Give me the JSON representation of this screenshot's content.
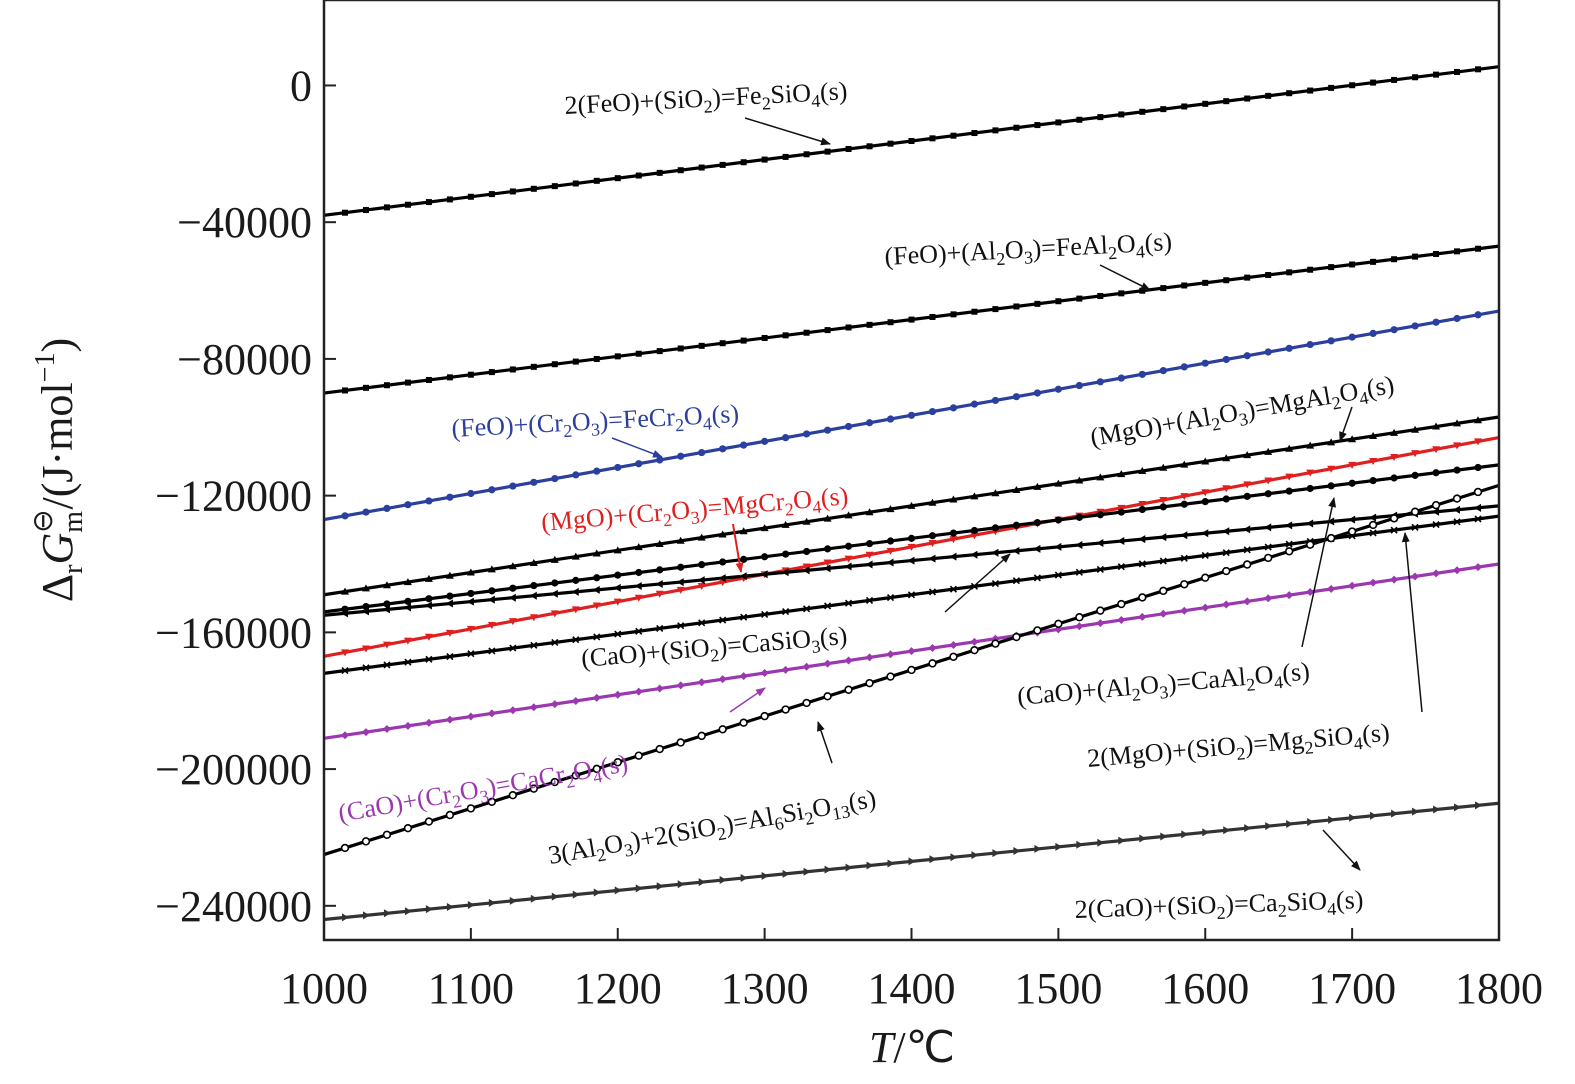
{
  "chart_data": {
    "type": "line",
    "xlabel": "T/℃",
    "ylabel": "ΔrGm⊖/(J·mol⁻¹)",
    "xlim": [
      1000,
      1800
    ],
    "ylim": [
      -250000,
      25000
    ],
    "xticks": [
      "1000",
      "1100",
      "1200",
      "1300",
      "1400",
      "1500",
      "1600",
      "1700",
      "1800"
    ],
    "yticks": [
      "0",
      "−40000",
      "−80000",
      "−120000",
      "−160000",
      "−200000",
      "−240000"
    ],
    "ytick_values": [
      0,
      -40000,
      -80000,
      -120000,
      -160000,
      -200000,
      -240000
    ],
    "grid": false,
    "series": [
      {
        "name": "2(FeO)+(SiO2)=Fe2SiO4(s)",
        "color": "#000000",
        "marker": "square",
        "x": [
          1000,
          1800
        ],
        "y": [
          -38000,
          5500
        ]
      },
      {
        "name": "(FeO)+(Al2O3)=FeAl2O4(s)",
        "color": "#000000",
        "marker": "square",
        "x": [
          1000,
          1800
        ],
        "y": [
          -90000,
          -47000
        ]
      },
      {
        "name": "(FeO)+(Cr2O3)=FeCr2O4(s)",
        "color": "#2a3f9e",
        "marker": "circle",
        "x": [
          1000,
          1800
        ],
        "y": [
          -127000,
          -66000
        ]
      },
      {
        "name": "(MgO)+(Al2O3)=MgAl2O4(s)",
        "color": "#000000",
        "marker": "triangle-up",
        "x": [
          1000,
          1800
        ],
        "y": [
          -149000,
          -97000
        ]
      },
      {
        "name": "(MgO)+(Cr2O3)=MgCr2O4(s)",
        "color": "#e02020",
        "marker": "triangle-down",
        "x": [
          1000,
          1800
        ],
        "y": [
          -167000,
          -103000
        ]
      },
      {
        "name": "(CaO)+(Al2O3)=CaAl2O4(s)",
        "color": "#000000",
        "marker": "hexagon",
        "x": [
          1000,
          1800
        ],
        "y": [
          -154000,
          -111000
        ]
      },
      {
        "name": "2(MgO)+(SiO2)=Mg2SiO4(s)",
        "color": "#000000",
        "marker": "triangle-left",
        "x": [
          1000,
          1800
        ],
        "y": [
          -155000,
          -123000
        ]
      },
      {
        "name": "(CaO)+(SiO2)=CaSiO3(s)",
        "color": "#000000",
        "marker": "cross",
        "x": [
          1000,
          1800
        ],
        "y": [
          -172000,
          -126000
        ]
      },
      {
        "name": "(CaO)+(Cr2O3)=CaCr2O4(s)",
        "color": "#9b38b0",
        "marker": "diamond",
        "x": [
          1000,
          1800
        ],
        "y": [
          -191000,
          -140000
        ]
      },
      {
        "name": "3(Al2O3)+2(SiO2)=Al6Si2O13(s)",
        "color": "#000000",
        "marker": "open-circle",
        "x": [
          1000,
          1800
        ],
        "y": [
          -225000,
          -117000
        ]
      },
      {
        "name": "2(CaO)+(SiO2)=Ca2SiO4(s)",
        "color": "#333333",
        "marker": "triangle-right",
        "x": [
          1000,
          1800
        ],
        "y": [
          -244000,
          -210000
        ]
      }
    ],
    "annotations": [
      {
        "text": "2(FeO)+(SiO2)=Fe2SiO4(s)",
        "color": "#000000",
        "arrow": true
      },
      {
        "text": "(FeO)+(Al2O3)=FeAl2O4(s)",
        "color": "#000000",
        "arrow": true
      },
      {
        "text": "(FeO)+(Cr2O3)=FeCr2O4(s)",
        "color": "#2a3f9e",
        "arrow": true
      },
      {
        "text": "(MgO)+(Al2O3)=MgAl2O4(s)",
        "color": "#000000",
        "arrow": true
      },
      {
        "text": "(MgO)+(Cr2O3)=MgCr2O4(s)",
        "color": "#e02020",
        "arrow": true
      },
      {
        "text": "(CaO)+(SiO2)=CaSiO3(s)",
        "color": "#000000",
        "arrow": true
      },
      {
        "text": "(CaO)+(Al2O3)=CaAl2O4(s)",
        "color": "#000000",
        "arrow": true
      },
      {
        "text": "2(MgO)+(SiO2)=Mg2SiO4(s)",
        "color": "#000000",
        "arrow": true
      },
      {
        "text": "(CaO)+(Cr2O3)=CaCr2O4(s)",
        "color": "#9b38b0",
        "arrow": true
      },
      {
        "text": "3(Al2O3)+2(SiO2)=Al6Si2O13(s)",
        "color": "#000000",
        "arrow": true
      },
      {
        "text": "2(CaO)+(SiO2)=Ca2SiO4(s)",
        "color": "#000000",
        "arrow": true
      }
    ]
  }
}
